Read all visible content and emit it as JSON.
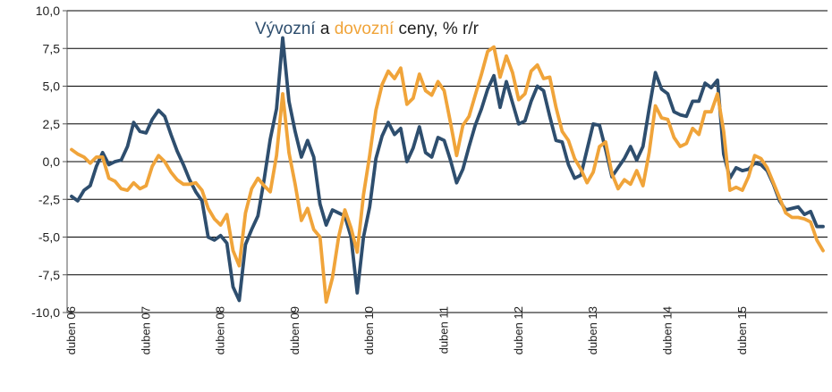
{
  "chart_data": {
    "type": "line",
    "title_parts": [
      {
        "text": "Vývozní",
        "color": "#2e4e6e"
      },
      {
        "text": " a ",
        "color": "#222222"
      },
      {
        "text": "dovozní",
        "color": "#f0a43a"
      },
      {
        "text": " ceny, % r/r",
        "color": "#222222"
      }
    ],
    "ylim": [
      -10,
      10
    ],
    "yticks": [
      10,
      7.5,
      5,
      2.5,
      0,
      -2.5,
      -5,
      -7.5,
      -10
    ],
    "ytick_labels": [
      "10,0",
      "7,5",
      "5,0",
      "2,5",
      "0,0",
      "-2,5",
      "-5,0",
      "-7,5",
      "-10,0"
    ],
    "x_label_positions": [
      0,
      12,
      24,
      36,
      48,
      60,
      72,
      84,
      96,
      108
    ],
    "x_labels": [
      "duben 06",
      "duben 07",
      "duben 08",
      "duben 09",
      "duben 10",
      "duben 11",
      "duben 12",
      "duben 13",
      "duben 14",
      "duben 15"
    ],
    "grid": true,
    "legend": "none",
    "series": [
      {
        "name": "Vývozní",
        "color": "#2e4e6e",
        "values": [
          -2.3,
          -2.6,
          -1.9,
          -1.6,
          -0.3,
          0.6,
          -0.2,
          0.0,
          0.1,
          1.0,
          2.6,
          2.0,
          1.9,
          2.8,
          3.4,
          3.0,
          1.8,
          0.7,
          -0.2,
          -1.2,
          -2.0,
          -2.6,
          -5.0,
          -5.2,
          -4.9,
          -5.4,
          -8.3,
          -9.2,
          -5.5,
          -4.5,
          -3.6,
          -1.2,
          1.5,
          3.5,
          8.2,
          4.0,
          2.0,
          0.3,
          1.4,
          0.3,
          -2.8,
          -4.2,
          -3.2,
          -3.4,
          -3.6,
          -5.0,
          -8.7,
          -5.0,
          -3.0,
          0.2,
          1.7,
          2.6,
          1.8,
          2.2,
          0.0,
          0.9,
          2.3,
          0.6,
          0.3,
          1.6,
          1.4,
          0.1,
          -1.4,
          -0.5,
          1.0,
          2.4,
          3.5,
          4.8,
          5.7,
          3.6,
          5.3,
          3.9,
          2.5,
          2.7,
          4.0,
          5.0,
          4.7,
          3.0,
          1.4,
          1.3,
          -0.2,
          -1.1,
          -0.9,
          0.8,
          2.5,
          2.4,
          0.8,
          -1.0,
          -0.4,
          0.2,
          1.0,
          0.1,
          1.0,
          3.5,
          5.9,
          4.8,
          4.5,
          3.3,
          3.1,
          3.0,
          4.0,
          4.0,
          5.2,
          4.9,
          5.4,
          0.5,
          -1.1,
          -0.4,
          -0.6,
          -0.5,
          -0.1,
          -0.2,
          -0.6,
          -1.5,
          -2.6,
          -3.2,
          -3.1,
          -3.0,
          -3.5,
          -3.3,
          -4.3,
          -4.3
        ]
      },
      {
        "name": "dovozní",
        "color": "#f0a43a",
        "values": [
          0.8,
          0.5,
          0.3,
          -0.1,
          0.3,
          0.3,
          -1.1,
          -1.3,
          -1.8,
          -1.9,
          -1.4,
          -1.8,
          -1.6,
          -0.3,
          0.4,
          0.0,
          -0.7,
          -1.2,
          -1.5,
          -1.5,
          -1.4,
          -1.9,
          -3.1,
          -3.8,
          -4.2,
          -3.5,
          -5.9,
          -6.9,
          -3.4,
          -1.8,
          -1.1,
          -1.6,
          -2.0,
          0.4,
          4.5,
          0.6,
          -1.5,
          -3.9,
          -3.1,
          -4.5,
          -5.0,
          -9.3,
          -7.7,
          -5.0,
          -3.2,
          -4.4,
          -6.0,
          -2.2,
          0.4,
          3.4,
          5.1,
          6.0,
          5.5,
          6.2,
          3.8,
          4.2,
          5.8,
          4.7,
          4.4,
          5.3,
          4.7,
          2.6,
          0.4,
          2.4,
          3.0,
          4.4,
          5.8,
          7.3,
          7.6,
          5.6,
          7.0,
          5.9,
          4.1,
          4.5,
          6.0,
          6.4,
          5.5,
          5.6,
          3.6,
          2.0,
          1.4,
          0.2,
          -0.5,
          -1.4,
          -0.7,
          1.0,
          1.3,
          -0.8,
          -1.8,
          -1.2,
          -1.5,
          -0.6,
          -1.6,
          0.6,
          3.7,
          2.9,
          2.8,
          1.6,
          1.0,
          1.2,
          2.2,
          1.8,
          3.3,
          3.3,
          4.5,
          2.0,
          -1.9,
          -1.7,
          -1.9,
          -1.0,
          0.4,
          0.2,
          -0.4,
          -1.4,
          -2.4,
          -3.4,
          -3.7,
          -3.7,
          -3.8,
          -4.0,
          -5.2,
          -5.9
        ]
      }
    ]
  }
}
